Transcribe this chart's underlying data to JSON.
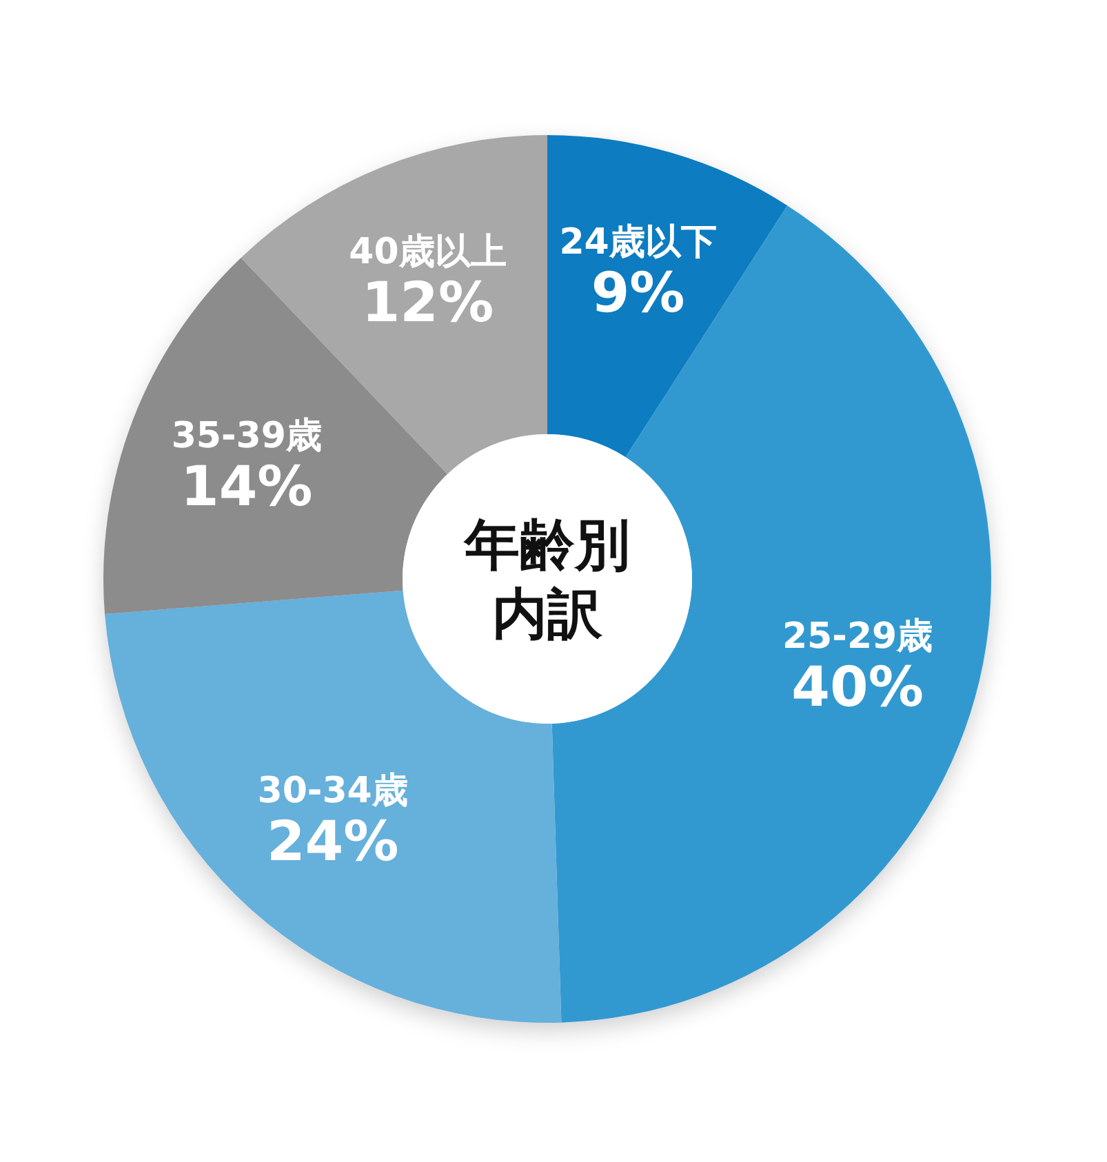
{
  "chart_data": {
    "type": "donut",
    "title": "年齢別内訳",
    "categories": [
      "24歳以下",
      "25-29歳",
      "30-34歳",
      "35-39歳",
      "40歳以上"
    ],
    "values": [
      9,
      40,
      24,
      14,
      12
    ],
    "value_labels": [
      "9%",
      "40%",
      "24%",
      "14%",
      "12%"
    ],
    "colors": [
      "#0a7cc1",
      "#3399d0",
      "#66b0dc",
      "#8c8c8c",
      "#a8a8a8"
    ]
  }
}
